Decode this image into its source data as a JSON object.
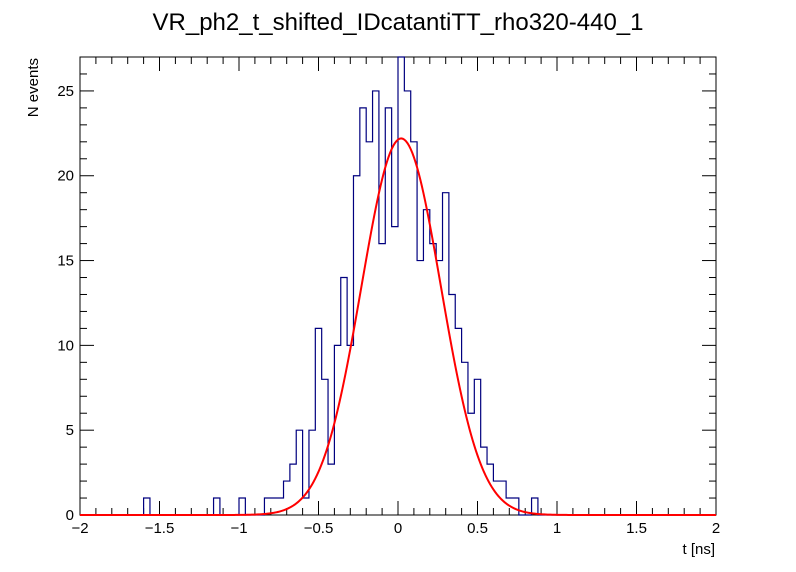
{
  "chart_data": {
    "type": "histogram",
    "title": "VR_ph2_t_shifted_IDcatantiTT_rho320-440_1",
    "xlabel": "t [ns]",
    "ylabel": "N events",
    "xlim": [
      -2,
      2
    ],
    "ylim": [
      0,
      27
    ],
    "xticks": [
      "−2",
      "−1.5",
      "−1",
      "−0.5",
      "0",
      "0.5",
      "1",
      "1.5",
      "2"
    ],
    "yticks": [
      "0",
      "5",
      "10",
      "15",
      "20",
      "25"
    ],
    "grid": false,
    "legend": "none",
    "histogram": {
      "name": "data",
      "color": "#00007f",
      "bin_width": 0.04,
      "bin_low_edges": [
        -2.0,
        -1.96,
        -1.92,
        -1.88,
        -1.84,
        -1.8,
        -1.76,
        -1.72,
        -1.68,
        -1.64,
        -1.6,
        -1.56,
        -1.52,
        -1.48,
        -1.44,
        -1.4,
        -1.36,
        -1.32,
        -1.28,
        -1.24,
        -1.2,
        -1.16,
        -1.12,
        -1.08,
        -1.04,
        -1.0,
        -0.96,
        -0.92,
        -0.88,
        -0.84,
        -0.8,
        -0.76,
        -0.72,
        -0.68,
        -0.64,
        -0.6,
        -0.56,
        -0.52,
        -0.48,
        -0.44,
        -0.4,
        -0.36,
        -0.32,
        -0.28,
        -0.24,
        -0.2,
        -0.16,
        -0.12,
        -0.08,
        -0.04,
        0.0,
        0.04,
        0.08,
        0.12,
        0.16,
        0.2,
        0.24,
        0.28,
        0.32,
        0.36,
        0.4,
        0.44,
        0.48,
        0.52,
        0.56,
        0.6,
        0.64,
        0.68,
        0.72,
        0.76,
        0.8,
        0.84,
        0.88,
        0.92,
        0.96,
        1.0,
        1.04,
        1.08,
        1.12,
        1.16,
        1.2,
        1.24,
        1.28,
        1.32,
        1.36,
        1.4,
        1.44,
        1.48,
        1.52,
        1.56,
        1.6,
        1.64,
        1.68,
        1.72,
        1.76,
        1.8,
        1.84,
        1.88,
        1.92,
        1.96
      ],
      "values": [
        0,
        0,
        0,
        0,
        0,
        0,
        0,
        0,
        0,
        0,
        1,
        0,
        0,
        0,
        0,
        0,
        0,
        0,
        0,
        0,
        0,
        1,
        0,
        0,
        0,
        1,
        0,
        0,
        0,
        1,
        1,
        1,
        2,
        3,
        5,
        1,
        5,
        11,
        8,
        3,
        10,
        14,
        10,
        20,
        24,
        22,
        25,
        16,
        24,
        17,
        27,
        25,
        22,
        15,
        18,
        16,
        15,
        19,
        13,
        11,
        9,
        6,
        8,
        4,
        3,
        2,
        2,
        1,
        1,
        0,
        0,
        1,
        0,
        0,
        0,
        0,
        0,
        0,
        0,
        0,
        0,
        0,
        0,
        0,
        0,
        0,
        0,
        0,
        0,
        0,
        0,
        0,
        0,
        0,
        0,
        0,
        0,
        0,
        0,
        0
      ]
    },
    "fit": {
      "name": "fit",
      "color": "#ff0000",
      "function": "gaussian",
      "amplitude": 22.2,
      "mean": 0.02,
      "sigma": 0.25
    }
  }
}
